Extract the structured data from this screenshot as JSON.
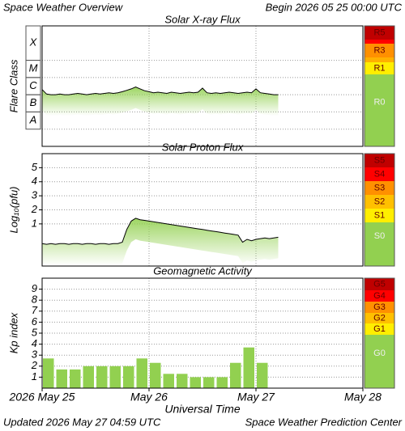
{
  "header": {
    "title": "Space Weather Overview",
    "begin": "Begin 2026 05 25 00:00 UTC"
  },
  "footer": {
    "updated": "Updated 2026 May 27 04:59 UTC",
    "source": "Space Weather Prediction Center"
  },
  "chart_data": [
    {
      "type": "line",
      "title": "Solar X-ray Flux",
      "ylabel": "Flare Class",
      "log_scale": true,
      "xlim": [
        0,
        72
      ],
      "ylim": [
        1e-09,
        0.01
      ],
      "yticks": [
        {
          "value": 1e-08,
          "label": "A"
        },
        {
          "value": 1e-07,
          "label": "B"
        },
        {
          "value": 1e-06,
          "label": "C"
        },
        {
          "value": 1e-05,
          "label": "M"
        },
        {
          "value": 0.0001,
          "label": "X"
        }
      ],
      "series": [
        {
          "color": "#000000",
          "fill": "#92d050",
          "x": [
            0,
            1,
            2,
            3,
            4,
            5,
            6,
            7,
            8,
            9,
            10,
            11,
            12,
            13,
            14,
            15,
            16,
            17,
            18,
            19,
            20,
            21,
            22,
            23,
            24,
            25,
            26,
            27,
            28,
            29,
            30,
            31,
            32,
            33,
            34,
            35,
            36,
            37,
            38,
            39,
            40,
            41,
            42,
            43,
            44,
            45,
            46,
            47,
            48,
            49,
            50,
            51,
            52,
            53
          ],
          "values": [
            2e-06,
            1.1e-06,
            1e-06,
            1e-06,
            1.1e-06,
            1e-06,
            1e-06,
            1.1e-06,
            1.2e-06,
            1.1e-06,
            1e-06,
            1.1e-06,
            1.2e-06,
            1.1e-06,
            1.2e-06,
            1.3e-06,
            1.2e-06,
            1.3e-06,
            1.5e-06,
            1.8e-06,
            2.2e-06,
            2.8e-06,
            2.2e-06,
            1.7e-06,
            1.5e-06,
            1.3e-06,
            1.4e-06,
            1.3e-06,
            1.2e-06,
            1.4e-06,
            1.3e-06,
            1.2e-06,
            1.3e-06,
            1.4e-06,
            1.3e-06,
            1.4e-06,
            2.4e-06,
            1.3e-06,
            1.2e-06,
            1.3e-06,
            1.2e-06,
            1.3e-06,
            1.4e-06,
            1.3e-06,
            1.2e-06,
            1.3e-06,
            1.4e-06,
            1.3e-06,
            2.2e-06,
            1.3e-06,
            1.2e-06,
            1.1e-06,
            1e-06,
            1e-06
          ]
        }
      ],
      "scale": [
        {
          "label": "R5",
          "color": "#c00000"
        },
        {
          "label": null,
          "color": "#ff0000"
        },
        {
          "label": "R3",
          "color": "#ff9000"
        },
        {
          "label": null,
          "color": "#ffb000"
        },
        {
          "label": "R1",
          "color": "#ffee00"
        },
        {
          "label": "R0",
          "color": "#92d050"
        }
      ]
    },
    {
      "type": "line",
      "title": "Solar Proton Flux",
      "ylabel": "Log₁₀(pfu)",
      "xlim": [
        0,
        72
      ],
      "ylim": [
        -2,
        6
      ],
      "yticks": [
        1,
        2,
        3,
        4,
        5
      ],
      "series": [
        {
          "color": "#000000",
          "fill": "#92d050",
          "x": [
            0,
            1,
            2,
            3,
            4,
            5,
            6,
            7,
            8,
            9,
            10,
            11,
            12,
            13,
            14,
            15,
            16,
            17,
            18,
            19,
            20,
            21,
            22,
            23,
            24,
            25,
            26,
            27,
            28,
            29,
            30,
            31,
            32,
            33,
            34,
            35,
            36,
            37,
            38,
            39,
            40,
            41,
            42,
            43,
            44,
            45,
            46,
            47,
            48,
            49,
            50,
            51,
            52,
            53
          ],
          "values": [
            -0.4,
            -0.45,
            -0.4,
            -0.45,
            -0.4,
            -0.4,
            -0.45,
            -0.4,
            -0.4,
            -0.45,
            -0.4,
            -0.4,
            -0.45,
            -0.4,
            -0.4,
            -0.45,
            -0.4,
            -0.4,
            -0.3,
            0.6,
            1.2,
            1.4,
            1.3,
            1.25,
            1.2,
            1.15,
            1.1,
            1.05,
            1.0,
            0.95,
            0.9,
            0.85,
            0.8,
            0.75,
            0.7,
            0.65,
            0.6,
            0.55,
            0.5,
            0.45,
            0.4,
            0.35,
            0.3,
            0.25,
            0.2,
            -0.3,
            -0.1,
            -0.2,
            -0.1,
            -0.05,
            0.0,
            -0.05,
            0.0,
            0.05
          ]
        }
      ],
      "scale": [
        {
          "label": "S5",
          "color": "#c00000"
        },
        {
          "label": "S4",
          "color": "#ff0000"
        },
        {
          "label": "S3",
          "color": "#ff9000"
        },
        {
          "label": "S2",
          "color": "#ffc000"
        },
        {
          "label": "S1",
          "color": "#ffee00"
        },
        {
          "label": "S0",
          "color": "#92d050"
        }
      ]
    },
    {
      "type": "bar",
      "title": "Geomagnetic Activity",
      "ylabel": "Kp index",
      "xlabel": "Universal Time",
      "xlim": [
        0,
        72
      ],
      "ylim": [
        0,
        10
      ],
      "yticks": [
        1,
        2,
        3,
        4,
        5,
        6,
        7,
        8,
        9
      ],
      "xticks": [
        {
          "value": 0,
          "label": "2026 May 25"
        },
        {
          "value": 24,
          "label": "May 26"
        },
        {
          "value": 48,
          "label": "May 27"
        },
        {
          "value": 72,
          "label": "May 28"
        }
      ],
      "color": "#92d050",
      "x": [
        0,
        3,
        6,
        9,
        12,
        15,
        18,
        21,
        24,
        27,
        30,
        33,
        36,
        39,
        42,
        45,
        48
      ],
      "values": [
        2.7,
        1.7,
        1.7,
        2.0,
        2.0,
        2.0,
        2.0,
        2.7,
        2.3,
        1.3,
        1.3,
        1.0,
        1.0,
        1.0,
        2.3,
        3.7,
        2.3
      ],
      "scale": [
        {
          "label": "G5",
          "color": "#c00000"
        },
        {
          "label": "G4",
          "color": "#ff0000"
        },
        {
          "label": "G3",
          "color": "#ff9000"
        },
        {
          "label": "G2",
          "color": "#ffc000"
        },
        {
          "label": "G1",
          "color": "#ffee00"
        },
        {
          "label": "G0",
          "color": "#92d050"
        }
      ]
    }
  ]
}
